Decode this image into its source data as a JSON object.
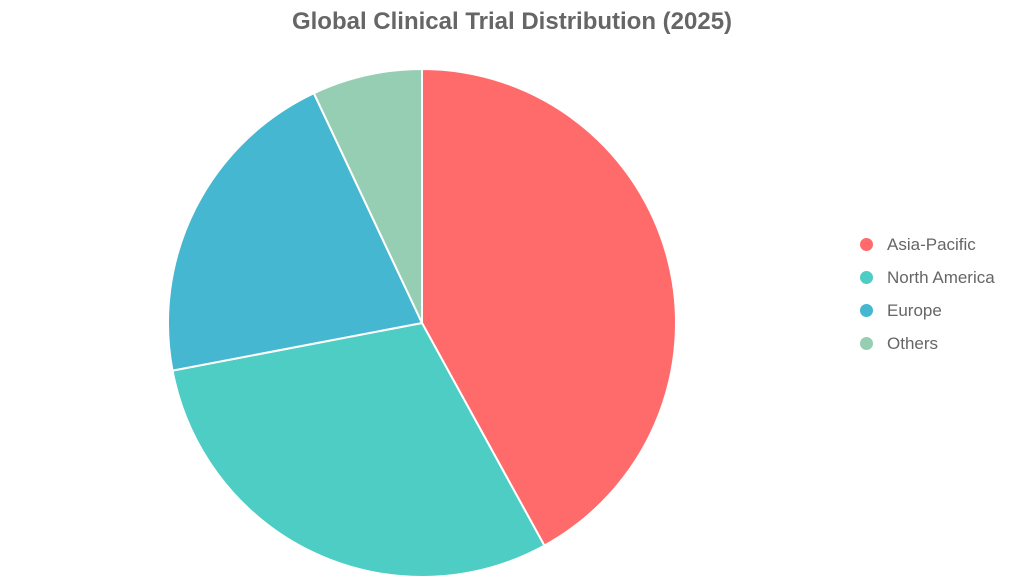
{
  "chart_data": {
    "type": "pie",
    "title": "Global Clinical Trial Distribution (2025)",
    "categories": [
      "Asia-Pacific",
      "North America",
      "Europe",
      "Others"
    ],
    "values": [
      42,
      30,
      21,
      7
    ],
    "colors": [
      "#ff6b6b",
      "#4ecdc4",
      "#45b7d1",
      "#96ceb4"
    ],
    "legend_position": "right"
  }
}
